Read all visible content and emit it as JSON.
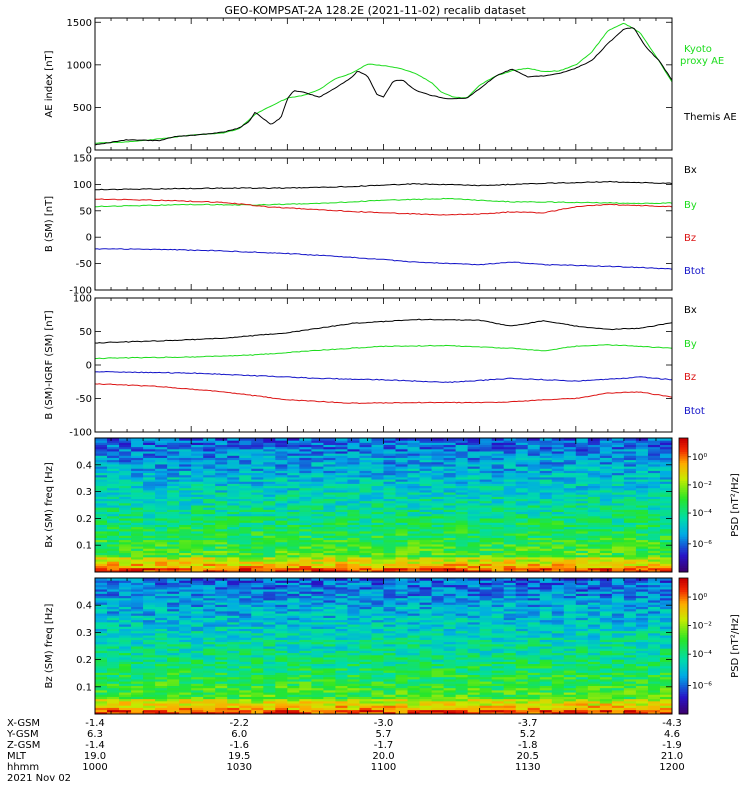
{
  "title": "GEO-KOMPSAT-2A 128.2E (2021-11-02) recalib dataset",
  "colors": {
    "black": "#000000",
    "green": "#1ddc1d",
    "red": "#dc1414",
    "blue": "#1414c8"
  },
  "x_axis": {
    "tick_labels": [
      "1000",
      "1030",
      "1100",
      "1130",
      "1200"
    ],
    "start": "10:00",
    "end": "12:00",
    "rows": [
      {
        "label": "X-GSM",
        "values": [
          "-1.4",
          "-2.2",
          "-3.0",
          "-3.7",
          "-4.3"
        ]
      },
      {
        "label": "Y-GSM",
        "values": [
          "6.3",
          "6.0",
          "5.7",
          "5.2",
          "4.6"
        ]
      },
      {
        "label": "Z-GSM",
        "values": [
          "-1.4",
          "-1.6",
          "-1.7",
          "-1.8",
          "-1.9"
        ]
      },
      {
        "label": "MLT",
        "values": [
          "19.0",
          "19.5",
          "20.0",
          "20.5",
          "21.0"
        ]
      },
      {
        "label": "hhmm",
        "values": [
          "1000",
          "1030",
          "1100",
          "1130",
          "1200"
        ]
      }
    ],
    "date": "2021 Nov 02"
  },
  "chart_data": [
    {
      "type": "line",
      "ylabel": "AE index [nT]",
      "ylim": [
        0,
        1550
      ],
      "yticks": [
        0,
        500,
        1000,
        1500
      ],
      "series": [
        {
          "name": "Kyoto proxy AE",
          "legend": [
            "Kyoto",
            "proxy AE"
          ],
          "color": "green",
          "points": [
            [
              0,
              80
            ],
            [
              10,
              95
            ],
            [
              20,
              130
            ],
            [
              30,
              175
            ],
            [
              40,
              200
            ],
            [
              45,
              250
            ],
            [
              50,
              420
            ],
            [
              55,
              520
            ],
            [
              60,
              610
            ],
            [
              65,
              640
            ],
            [
              70,
              710
            ],
            [
              75,
              840
            ],
            [
              80,
              900
            ],
            [
              85,
              1010
            ],
            [
              90,
              990
            ],
            [
              95,
              960
            ],
            [
              100,
              900
            ],
            [
              105,
              790
            ],
            [
              108,
              680
            ],
            [
              112,
              620
            ],
            [
              116,
              610
            ],
            [
              120,
              760
            ],
            [
              125,
              870
            ],
            [
              130,
              930
            ],
            [
              135,
              960
            ],
            [
              140,
              920
            ],
            [
              145,
              930
            ],
            [
              150,
              1000
            ],
            [
              155,
              1150
            ],
            [
              160,
              1400
            ],
            [
              165,
              1490
            ],
            [
              170,
              1380
            ],
            [
              175,
              1100
            ],
            [
              180,
              800
            ]
          ]
        },
        {
          "name": "Themis AE",
          "legend": [
            "Themis AE"
          ],
          "color": "black",
          "points": [
            [
              0,
              60
            ],
            [
              10,
              120
            ],
            [
              20,
              110
            ],
            [
              25,
              160
            ],
            [
              30,
              170
            ],
            [
              40,
              210
            ],
            [
              45,
              260
            ],
            [
              48,
              330
            ],
            [
              50,
              450
            ],
            [
              52,
              380
            ],
            [
              55,
              300
            ],
            [
              58,
              380
            ],
            [
              60,
              600
            ],
            [
              62,
              700
            ],
            [
              65,
              680
            ],
            [
              70,
              620
            ],
            [
              75,
              730
            ],
            [
              80,
              850
            ],
            [
              82,
              930
            ],
            [
              85,
              870
            ],
            [
              88,
              650
            ],
            [
              90,
              620
            ],
            [
              93,
              810
            ],
            [
              96,
              820
            ],
            [
              100,
              700
            ],
            [
              105,
              640
            ],
            [
              110,
              600
            ],
            [
              116,
              610
            ],
            [
              120,
              720
            ],
            [
              125,
              870
            ],
            [
              130,
              950
            ],
            [
              135,
              860
            ],
            [
              140,
              870
            ],
            [
              145,
              900
            ],
            [
              150,
              960
            ],
            [
              155,
              1050
            ],
            [
              160,
              1250
            ],
            [
              165,
              1420
            ],
            [
              168,
              1440
            ],
            [
              172,
              1200
            ],
            [
              176,
              1050
            ],
            [
              180,
              820
            ]
          ]
        }
      ]
    },
    {
      "type": "line",
      "ylabel": "B (SM) [nT]",
      "ylim": [
        -100,
        150
      ],
      "yticks": [
        -100,
        -50,
        0,
        50,
        100,
        150
      ],
      "series": [
        {
          "name": "Bx",
          "color": "black",
          "points": [
            [
              0,
              90
            ],
            [
              40,
              93
            ],
            [
              60,
              93
            ],
            [
              80,
              96
            ],
            [
              100,
              101
            ],
            [
              120,
              98
            ],
            [
              140,
              102
            ],
            [
              160,
              105
            ],
            [
              180,
              102
            ]
          ]
        },
        {
          "name": "By",
          "color": "green",
          "points": [
            [
              0,
              58
            ],
            [
              30,
              62
            ],
            [
              50,
              61
            ],
            [
              70,
              64
            ],
            [
              90,
              70
            ],
            [
              110,
              73
            ],
            [
              130,
              67
            ],
            [
              150,
              66
            ],
            [
              170,
              64
            ],
            [
              180,
              65
            ]
          ]
        },
        {
          "name": "Bz",
          "color": "red",
          "points": [
            [
              0,
              72
            ],
            [
              20,
              70
            ],
            [
              40,
              66
            ],
            [
              55,
              57
            ],
            [
              70,
              52
            ],
            [
              90,
              46
            ],
            [
              110,
              42
            ],
            [
              120,
              44
            ],
            [
              130,
              48
            ],
            [
              140,
              46
            ],
            [
              150,
              58
            ],
            [
              160,
              62
            ],
            [
              175,
              59
            ],
            [
              180,
              58
            ]
          ]
        },
        {
          "name": "Btot",
          "color": "blue",
          "points": [
            [
              0,
              -22
            ],
            [
              20,
              -23
            ],
            [
              40,
              -26
            ],
            [
              60,
              -31
            ],
            [
              80,
              -38
            ],
            [
              100,
              -47
            ],
            [
              120,
              -52
            ],
            [
              130,
              -47
            ],
            [
              140,
              -52
            ],
            [
              160,
              -55
            ],
            [
              180,
              -60
            ]
          ]
        }
      ]
    },
    {
      "type": "line",
      "ylabel": "B (SM)-IGRF (SM) [nT]",
      "ylim": [
        -100,
        100
      ],
      "yticks": [
        -100,
        -50,
        0,
        50,
        100
      ],
      "series": [
        {
          "name": "Bx",
          "color": "black",
          "points": [
            [
              0,
              33
            ],
            [
              20,
              36
            ],
            [
              40,
              40
            ],
            [
              60,
              48
            ],
            [
              80,
              62
            ],
            [
              100,
              68
            ],
            [
              120,
              67
            ],
            [
              130,
              58
            ],
            [
              140,
              66
            ],
            [
              150,
              58
            ],
            [
              160,
              53
            ],
            [
              170,
              55
            ],
            [
              180,
              63
            ]
          ]
        },
        {
          "name": "By",
          "color": "green",
          "points": [
            [
              0,
              10
            ],
            [
              30,
              12
            ],
            [
              50,
              15
            ],
            [
              70,
              22
            ],
            [
              90,
              28
            ],
            [
              110,
              29
            ],
            [
              130,
              25
            ],
            [
              140,
              21
            ],
            [
              150,
              28
            ],
            [
              160,
              30
            ],
            [
              170,
              28
            ],
            [
              180,
              25
            ]
          ]
        },
        {
          "name": "Bz",
          "color": "red",
          "points": [
            [
              0,
              -28
            ],
            [
              20,
              -32
            ],
            [
              40,
              -40
            ],
            [
              60,
              -52
            ],
            [
              80,
              -57
            ],
            [
              100,
              -56
            ],
            [
              120,
              -56
            ],
            [
              130,
              -55
            ],
            [
              140,
              -52
            ],
            [
              150,
              -50
            ],
            [
              160,
              -42
            ],
            [
              170,
              -40
            ],
            [
              180,
              -48
            ]
          ]
        },
        {
          "name": "Btot",
          "color": "blue",
          "points": [
            [
              0,
              -10
            ],
            [
              30,
              -12
            ],
            [
              50,
              -16
            ],
            [
              70,
              -20
            ],
            [
              90,
              -22
            ],
            [
              110,
              -26
            ],
            [
              130,
              -20
            ],
            [
              150,
              -24
            ],
            [
              170,
              -18
            ],
            [
              180,
              -22
            ]
          ]
        }
      ]
    },
    {
      "type": "heatmap",
      "ylabel": "Bx (SM) freq [Hz]",
      "ylim": [
        0,
        0.5
      ],
      "yticks": [
        0.1,
        0.2,
        0.3,
        0.4
      ],
      "colorbar": {
        "label": "PSD [nT²/Hz]",
        "ticks": [
          "10⁰",
          "10⁻²",
          "10⁻⁴",
          "10⁻⁶"
        ]
      }
    },
    {
      "type": "heatmap",
      "ylabel": "Bz (SM) freq [Hz]",
      "ylim": [
        0,
        0.5
      ],
      "yticks": [
        0.1,
        0.2,
        0.3,
        0.4
      ],
      "colorbar": {
        "label": "PSD [nT²/Hz]",
        "ticks": [
          "10⁰",
          "10⁻²",
          "10⁻⁴",
          "10⁻⁶"
        ]
      }
    }
  ]
}
